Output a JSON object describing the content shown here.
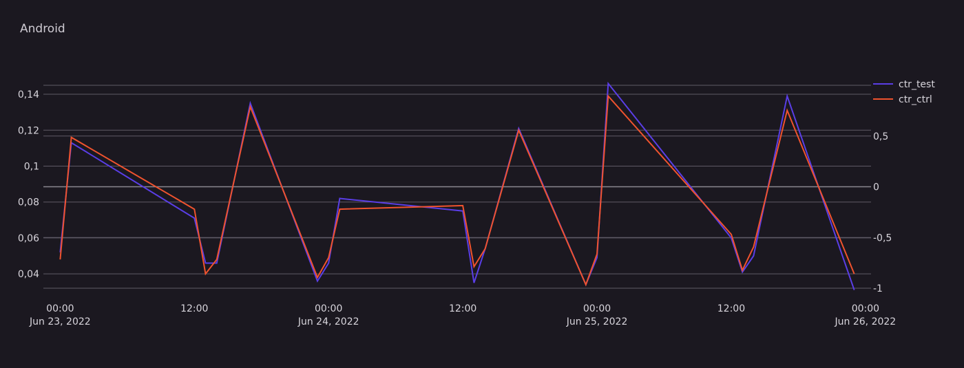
{
  "panel": {
    "title": "Android"
  },
  "colors": {
    "background": "#1b1820",
    "grid": "#5f5b66",
    "zero_line": "#8b8790",
    "ctr_test": "#5a3ee6",
    "ctr_ctrl": "#f0532e"
  },
  "chart_data": {
    "type": "line",
    "title": "Android",
    "grid": true,
    "legend_position": "top-right",
    "x_axis": {
      "range": [
        "2022-06-22T22:30",
        "2022-06-26T00:30"
      ],
      "ticks": [
        {
          "t": "2022-06-23T00:00",
          "time": "00:00",
          "date": "Jun 23, 2022"
        },
        {
          "t": "2022-06-23T12:00",
          "time": "12:00",
          "date": ""
        },
        {
          "t": "2022-06-24T00:00",
          "time": "00:00",
          "date": "Jun 24, 2022"
        },
        {
          "t": "2022-06-24T12:00",
          "time": "12:00",
          "date": ""
        },
        {
          "t": "2022-06-25T00:00",
          "time": "00:00",
          "date": "Jun 25, 2022"
        },
        {
          "t": "2022-06-25T12:00",
          "time": "12:00",
          "date": ""
        },
        {
          "t": "2022-06-26T00:00",
          "time": "00:00",
          "date": "Jun 26, 2022"
        }
      ]
    },
    "y_left": {
      "range": [
        0.032,
        0.145
      ],
      "ticks": [
        0.04,
        0.06,
        0.08,
        0.1,
        0.12,
        0.14
      ],
      "tick_labels": [
        "0,04",
        "0,06",
        "0,08",
        "0,1",
        "0,12",
        "0,14"
      ]
    },
    "y_right": {
      "range": [
        -1,
        1
      ],
      "ticks": [
        -1,
        -0.5,
        0,
        0.5
      ],
      "tick_labels": [
        "-1",
        "-0,5",
        "0",
        "0,5"
      ]
    },
    "series": [
      {
        "name": "ctr_test",
        "color": "#5a3ee6",
        "points": [
          [
            "2022-06-23T00:00",
            0.052
          ],
          [
            "2022-06-23T01:00",
            0.113
          ],
          [
            "2022-06-23T12:00",
            0.071
          ],
          [
            "2022-06-23T13:00",
            0.046
          ],
          [
            "2022-06-23T14:00",
            0.046
          ],
          [
            "2022-06-23T17:00",
            0.135
          ],
          [
            "2022-06-23T23:00",
            0.036
          ],
          [
            "2022-06-24T00:00",
            0.046
          ],
          [
            "2022-06-24T01:00",
            0.082
          ],
          [
            "2022-06-24T12:00",
            0.075
          ],
          [
            "2022-06-24T13:00",
            0.035
          ],
          [
            "2022-06-24T14:00",
            0.054
          ],
          [
            "2022-06-24T17:00",
            0.121
          ],
          [
            "2022-06-24T23:00",
            0.034
          ],
          [
            "2022-06-25T00:00",
            0.049
          ],
          [
            "2022-06-25T01:00",
            0.146
          ],
          [
            "2022-06-25T12:00",
            0.06
          ],
          [
            "2022-06-25T13:00",
            0.041
          ],
          [
            "2022-06-25T14:00",
            0.05
          ],
          [
            "2022-06-25T17:00",
            0.139
          ],
          [
            "2022-06-25T23:00",
            0.031
          ]
        ]
      },
      {
        "name": "ctr_ctrl",
        "color": "#f0532e",
        "points": [
          [
            "2022-06-23T00:00",
            0.048
          ],
          [
            "2022-06-23T01:00",
            0.116
          ],
          [
            "2022-06-23T12:00",
            0.076
          ],
          [
            "2022-06-23T13:00",
            0.04
          ],
          [
            "2022-06-23T14:00",
            0.048
          ],
          [
            "2022-06-23T17:00",
            0.133
          ],
          [
            "2022-06-23T23:00",
            0.038
          ],
          [
            "2022-06-24T00:00",
            0.049
          ],
          [
            "2022-06-24T01:00",
            0.076
          ],
          [
            "2022-06-24T12:00",
            0.078
          ],
          [
            "2022-06-24T13:00",
            0.044
          ],
          [
            "2022-06-24T14:00",
            0.054
          ],
          [
            "2022-06-24T17:00",
            0.12
          ],
          [
            "2022-06-24T23:00",
            0.034
          ],
          [
            "2022-06-25T00:00",
            0.051
          ],
          [
            "2022-06-25T01:00",
            0.139
          ],
          [
            "2022-06-25T12:00",
            0.062
          ],
          [
            "2022-06-25T13:00",
            0.042
          ],
          [
            "2022-06-25T14:00",
            0.055
          ],
          [
            "2022-06-25T17:00",
            0.131
          ],
          [
            "2022-06-25T23:00",
            0.04
          ]
        ]
      }
    ]
  }
}
